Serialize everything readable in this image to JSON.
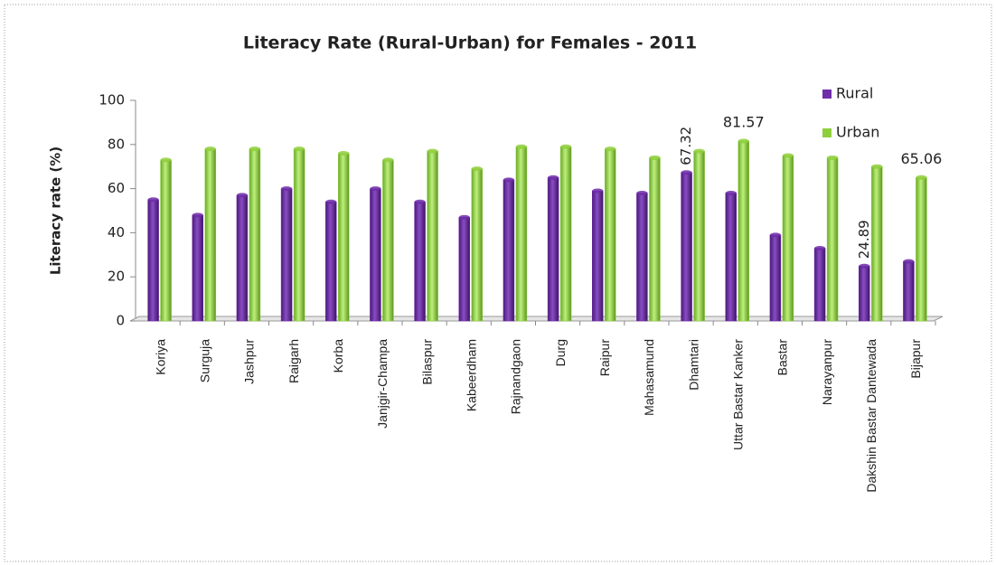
{
  "chart_data": {
    "type": "bar",
    "title": "Literacy Rate (Rural-Urban)  for Females - 2011",
    "y_label": "Literacy rate (%)",
    "categories": [
      "Koriya",
      "Surguja",
      "Jashpur",
      "Raigarh",
      "Korba",
      "Janjgir-Champa",
      "Bilaspur",
      "Kabeerdham",
      "Rajnandgaon",
      "Durg",
      "Raipur",
      "Mahasamund",
      "Dhamtari",
      "Uttar Bastar Kanker",
      "Bastar",
      "Narayanpur",
      "Dakshin Bastar Dantewada",
      "Bijapur"
    ],
    "series": [
      {
        "name": "Rural",
        "color": "#6f2da8",
        "values": [
          55,
          48,
          57,
          60,
          54,
          60,
          54,
          47,
          64,
          65,
          59,
          58,
          67.32,
          58,
          39,
          33,
          24.89,
          27
        ],
        "value_labels": [
          null,
          null,
          null,
          null,
          null,
          null,
          null,
          null,
          null,
          null,
          null,
          null,
          "67.32",
          null,
          null,
          null,
          "24.89",
          null
        ]
      },
      {
        "name": "Urban",
        "color": "#8fcf3c",
        "values": [
          73,
          78,
          78,
          78,
          76,
          73,
          77,
          69,
          79,
          79,
          78,
          74,
          77,
          81.57,
          75,
          74,
          70,
          65.06
        ],
        "value_labels": [
          null,
          null,
          null,
          null,
          null,
          null,
          null,
          null,
          null,
          null,
          null,
          null,
          null,
          "81.57",
          null,
          null,
          null,
          "65.06"
        ]
      }
    ],
    "ylim": [
      0,
      100
    ],
    "yticks": [
      0,
      20,
      40,
      60,
      80,
      100
    ],
    "legend": "top-right"
  }
}
